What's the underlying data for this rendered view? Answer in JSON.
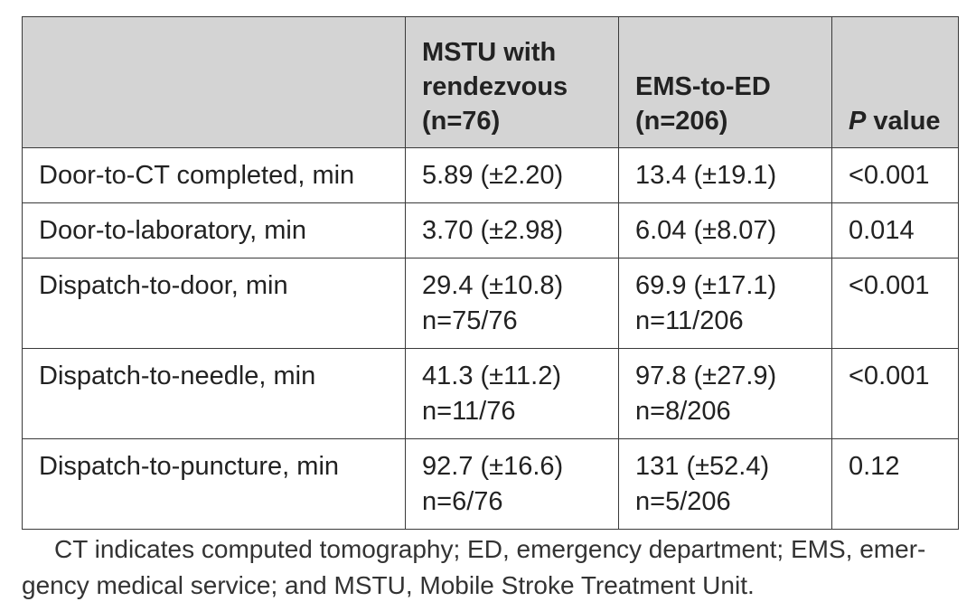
{
  "table": {
    "headers": {
      "col1_lines": [
        "MSTU with",
        "rendezvous",
        "(n=76)"
      ],
      "col2_lines": [
        "EMS-to-ED",
        "(n=206)"
      ],
      "col3_italic": "P",
      "col3_rest": " value"
    },
    "rows": [
      {
        "label": "Door-to-CT completed, min",
        "mstu": [
          "5.89 (±2.20)"
        ],
        "ems": [
          "13.4 (±19.1)"
        ],
        "p": "<0.001"
      },
      {
        "label": "Door-to-laboratory, min",
        "mstu": [
          "3.70 (±2.98)"
        ],
        "ems": [
          "6.04 (±8.07)"
        ],
        "p": "0.014"
      },
      {
        "label": "Dispatch-to-door, min",
        "mstu": [
          "29.4 (±10.8)",
          "n=75/76"
        ],
        "ems": [
          "69.9 (±17.1)",
          "n=11/206"
        ],
        "p": "<0.001"
      },
      {
        "label": "Dispatch-to-needle, min",
        "mstu": [
          "41.3 (±11.2)",
          "n=11/76"
        ],
        "ems": [
          "97.8 (±27.9)",
          "n=8/206"
        ],
        "p": "<0.001"
      },
      {
        "label": "Dispatch-to-puncture, min",
        "mstu": [
          "92.7 (±16.6)",
          "n=6/76"
        ],
        "ems": [
          "131 (±52.4)",
          "n=5/206"
        ],
        "p": "0.12"
      }
    ]
  },
  "footnote": "CT indicates computed tomography; ED, emergency department; EMS, emer-gency medical service; and MSTU, Mobile Stroke Treatment Unit."
}
